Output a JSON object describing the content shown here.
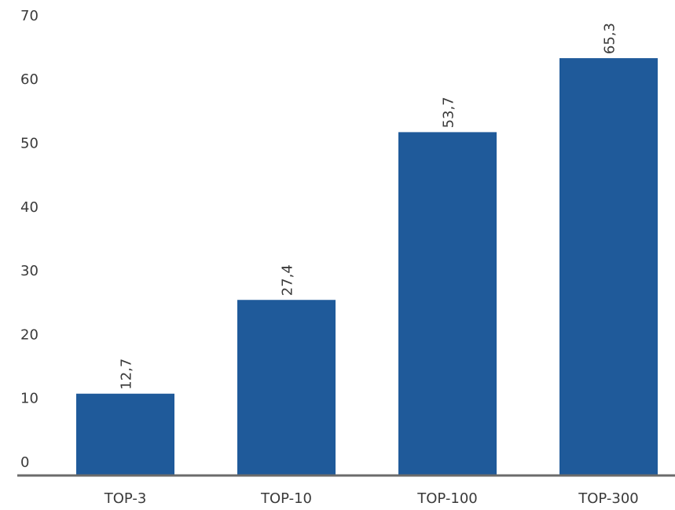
{
  "chart_data": {
    "type": "bar",
    "categories": [
      "TOP-3",
      "TOP-10",
      "TOP-100",
      "TOP-300"
    ],
    "values": [
      12.7,
      27.4,
      53.7,
      65.3
    ],
    "value_labels": [
      "12,7",
      "27,4",
      "53,7",
      "65,3"
    ],
    "title": "",
    "xlabel": "",
    "ylabel": "",
    "ylim": [
      0,
      70
    ],
    "yticks": [
      0,
      10,
      20,
      30,
      40,
      50,
      60,
      70
    ],
    "grid": false,
    "colors": {
      "bar": "#1f5a9a",
      "axis": "#6b6b6b"
    }
  }
}
